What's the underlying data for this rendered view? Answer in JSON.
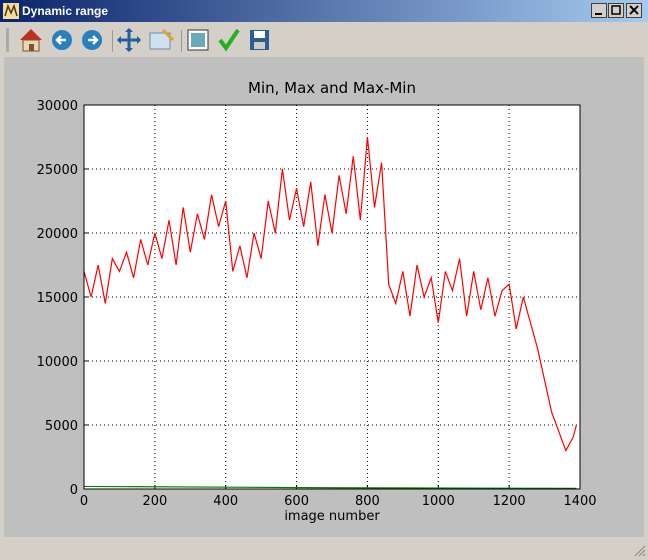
{
  "window": {
    "title": "Dynamic range"
  },
  "chart_data": {
    "type": "line",
    "title": "Min, Max and Max-Min",
    "x_label": "image number",
    "x": [
      0,
      20,
      40,
      60,
      80,
      100,
      120,
      140,
      160,
      180,
      200,
      220,
      240,
      260,
      280,
      300,
      320,
      340,
      360,
      380,
      400,
      420,
      440,
      460,
      480,
      500,
      520,
      540,
      560,
      580,
      600,
      620,
      640,
      660,
      680,
      700,
      720,
      740,
      760,
      780,
      800,
      820,
      840,
      860,
      880,
      900,
      920,
      940,
      960,
      980,
      1000,
      1020,
      1040,
      1060,
      1080,
      1100,
      1120,
      1140,
      1160,
      1180,
      1200,
      1220,
      1240,
      1260,
      1280,
      1300,
      1320,
      1340,
      1360,
      1380,
      1390
    ],
    "series": [
      {
        "color": "#ff0000",
        "values": [
          17000,
          15000,
          17500,
          14500,
          18000,
          17000,
          18500,
          16500,
          19500,
          17500,
          20000,
          18000,
          21000,
          17500,
          22000,
          18500,
          21500,
          19500,
          23000,
          20500,
          22500,
          17000,
          19000,
          16500,
          20000,
          18000,
          22500,
          20000,
          25000,
          21000,
          23500,
          20500,
          24000,
          19000,
          23000,
          20000,
          24500,
          21500,
          26000,
          21000,
          27500,
          22000,
          25500,
          16000,
          14500,
          17000,
          13500,
          17500,
          15000,
          16500,
          13000,
          17000,
          15500,
          18000,
          13500,
          17000,
          14000,
          16500,
          13500,
          15500,
          16000,
          12500,
          15000,
          13000,
          11000,
          8500,
          6000,
          4500,
          3000,
          4000,
          5000
        ]
      },
      {
        "color": "#008000",
        "x": [
          0,
          700,
          1390
        ],
        "values": [
          200,
          100,
          50
        ]
      }
    ],
    "xlim": [
      0,
      1400
    ],
    "xticks": [
      0,
      200,
      400,
      600,
      800,
      1000,
      1200,
      1400
    ],
    "ylim": [
      0,
      30000
    ],
    "yticks": [
      0,
      5000,
      10000,
      15000,
      20000,
      25000,
      30000
    ],
    "grid": true
  }
}
